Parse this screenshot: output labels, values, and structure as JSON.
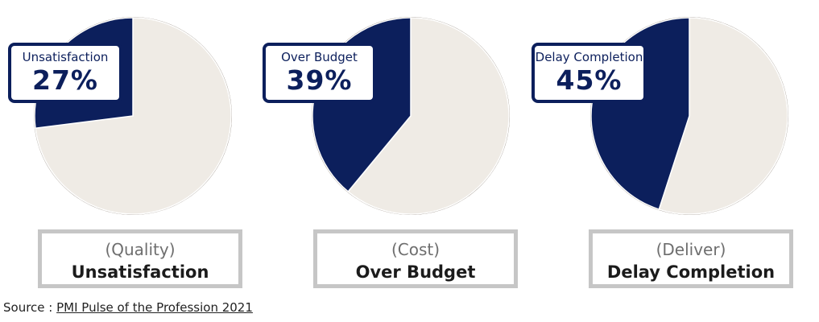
{
  "colors": {
    "accent": "#0c1f5c",
    "rest": "#efebe5",
    "caption_border": "#c6c6c6"
  },
  "chart_data": [
    {
      "type": "pie",
      "slices": [
        {
          "label": "Unsatisfaction",
          "value": 27
        },
        {
          "label": "",
          "value": 73
        }
      ],
      "callout": {
        "label": "Unsatisfaction",
        "value": "27%"
      },
      "caption": {
        "category": "(Quality)",
        "label": "Unsatisfaction"
      }
    },
    {
      "type": "pie",
      "slices": [
        {
          "label": "Over Budget",
          "value": 39
        },
        {
          "label": "",
          "value": 61
        }
      ],
      "callout": {
        "label": "Over Budget",
        "value": "39%"
      },
      "caption": {
        "category": "(Cost)",
        "label": "Over Budget"
      }
    },
    {
      "type": "pie",
      "slices": [
        {
          "label": "Delay Completion",
          "value": 45
        },
        {
          "label": "",
          "value": 55
        }
      ],
      "callout": {
        "label": "Delay Completion",
        "value": "45%"
      },
      "caption": {
        "category": "(Deliver)",
        "label": "Delay Completion"
      }
    }
  ],
  "source": {
    "prefix": "Source : ",
    "link_text": "PMI Pulse of the Profession 2021"
  }
}
